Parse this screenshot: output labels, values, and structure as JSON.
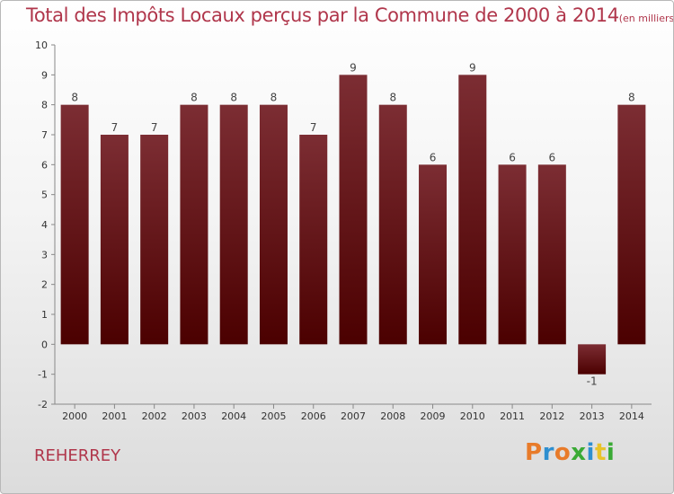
{
  "title": {
    "main": "Total des Impôts Locaux perçus par la Commune de 2000 à 2014",
    "unit": "(en milliers d'€)"
  },
  "commune": "REHERREY",
  "brand": "Proxiti",
  "colors": {
    "title": "#b0364b",
    "bar_top": "#7c2d33",
    "bar_bottom": "#4b0000",
    "brand_letters": [
      "#e87b2a",
      "#2e8fd0",
      "#e87b2a",
      "#3aaa35",
      "#2e8fd0",
      "#e8c32a",
      "#3aaa35"
    ]
  },
  "chart_data": {
    "type": "bar",
    "title": "Total des Impôts Locaux perçus par la Commune de 2000 à 2014",
    "subtitle": "(en milliers d'€)",
    "xlabel": "",
    "ylabel": "",
    "ylim": [
      -2,
      10
    ],
    "yticks": [
      -2,
      -1,
      0,
      1,
      2,
      3,
      4,
      5,
      6,
      7,
      8,
      9,
      10
    ],
    "grid": false,
    "categories": [
      "2000",
      "2001",
      "2002",
      "2003",
      "2004",
      "2005",
      "2006",
      "2007",
      "2008",
      "2009",
      "2010",
      "2011",
      "2012",
      "2013",
      "2014"
    ],
    "values": [
      8,
      7,
      7,
      8,
      8,
      8,
      7,
      9,
      8,
      6,
      9,
      6,
      6,
      -1,
      8
    ],
    "labels": [
      "8",
      "7",
      "7",
      "8",
      "8",
      "8",
      "7",
      "9",
      "8",
      "6",
      "9",
      "6",
      "6",
      "-1",
      "8"
    ]
  }
}
